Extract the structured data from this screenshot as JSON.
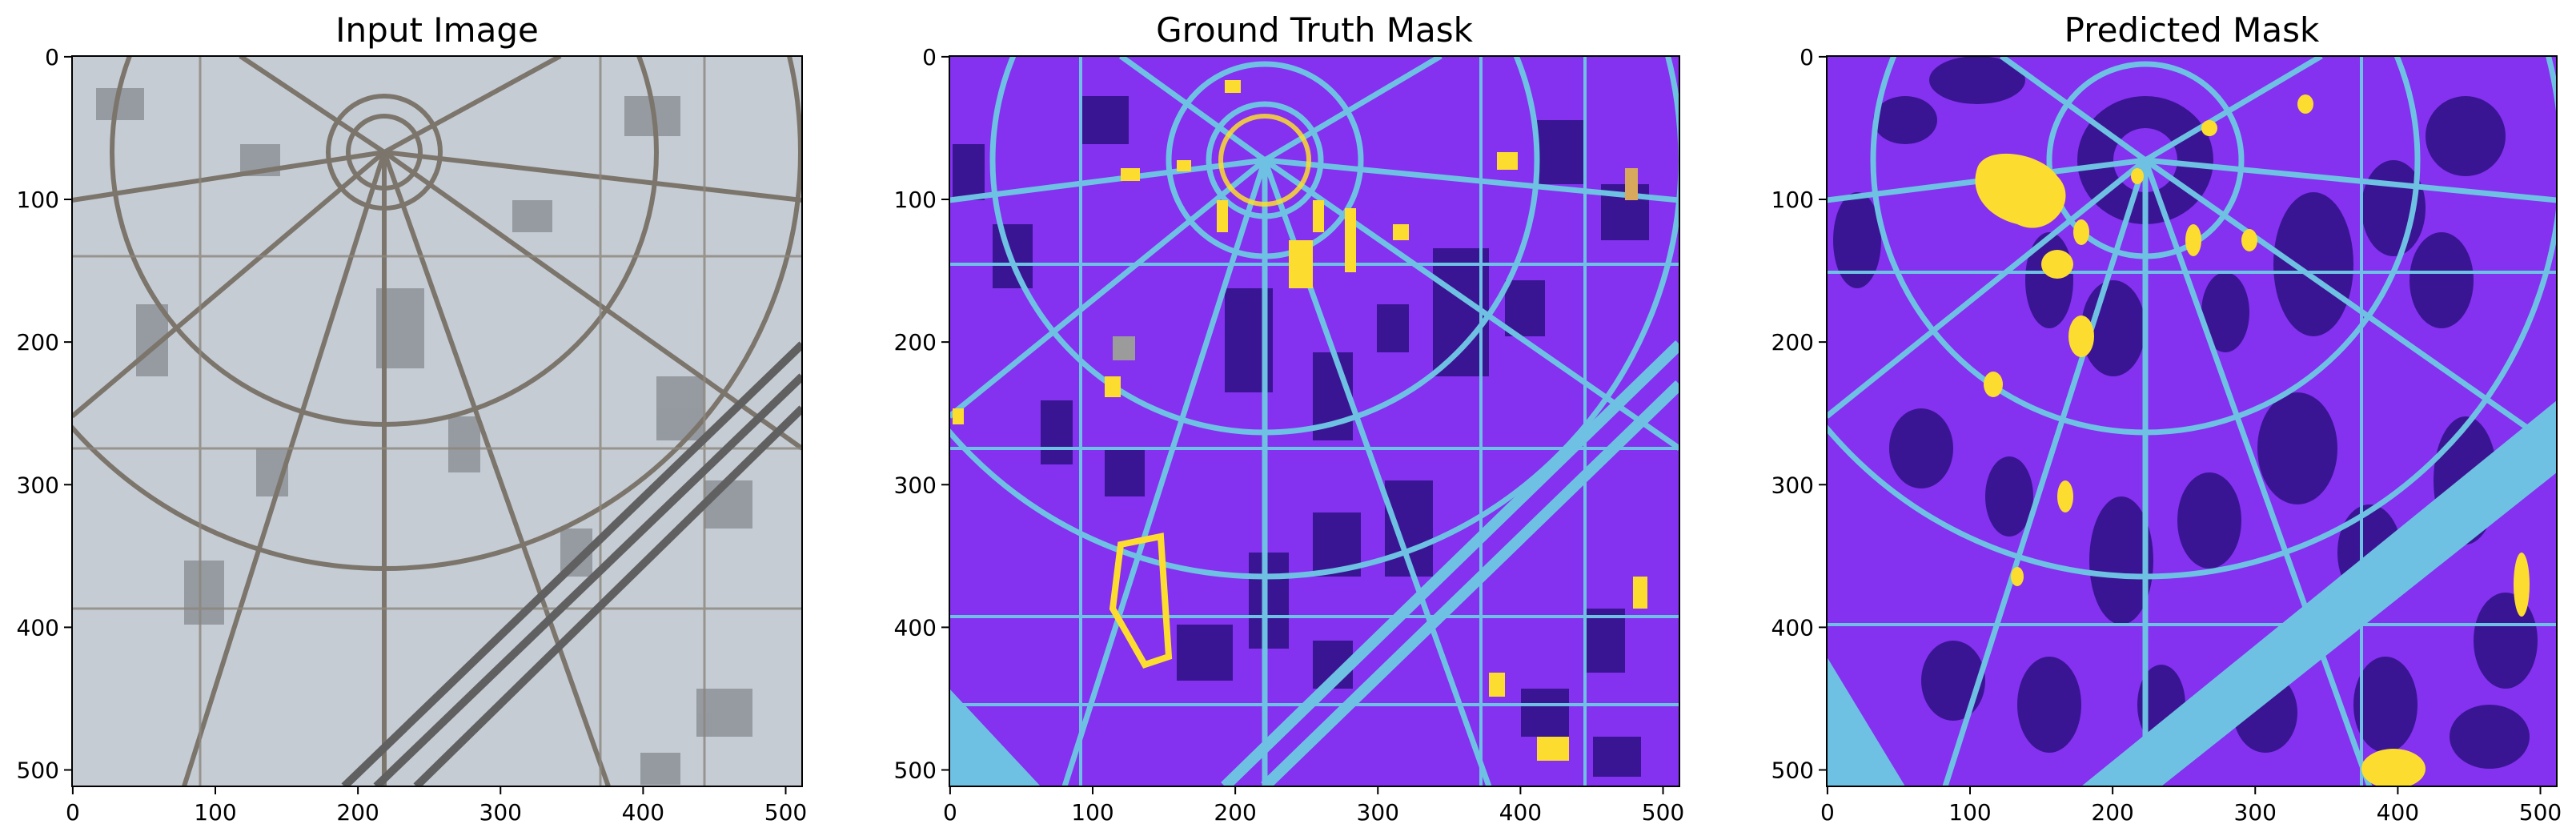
{
  "panels": [
    {
      "title": "Input Image",
      "image": "aerial satellite photograph of a circular urban district with radial roads",
      "x_ticks": [
        "0",
        "100",
        "200",
        "300",
        "400",
        "500"
      ],
      "y_ticks": [
        "0",
        "100",
        "200",
        "300",
        "400",
        "500"
      ]
    },
    {
      "title": "Ground Truth Mask",
      "image": "segmentation mask: violet land, dark indigo buildings, light blue roads, yellow vegetation",
      "x_ticks": [
        "0",
        "100",
        "200",
        "300",
        "400",
        "500"
      ],
      "y_ticks": [
        "0",
        "100",
        "200",
        "300",
        "400",
        "500"
      ]
    },
    {
      "title": "Predicted Mask",
      "image": "predicted segmentation mask: violet land, dark indigo buildings, light blue roads, yellow vegetation",
      "x_ticks": [
        "0",
        "100",
        "200",
        "300",
        "400",
        "500"
      ],
      "y_ticks": [
        "0",
        "100",
        "200",
        "300",
        "400",
        "500"
      ]
    }
  ],
  "palette": {
    "land": "#8431F0",
    "building": "#3A1593",
    "road": "#6EC1E2",
    "vegetation": "#FCDD2F",
    "water": "#D8A85C",
    "unlabeled": "#9B9B9B"
  }
}
